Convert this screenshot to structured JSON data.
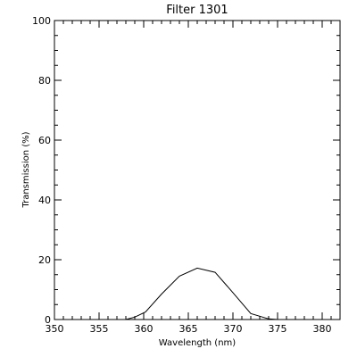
{
  "chart_data": {
    "type": "line",
    "title": "Filter 1301",
    "xlabel": "Wavelength (nm)",
    "ylabel": "Transmission (%)",
    "xlim": [
      350,
      382
    ],
    "ylim": [
      0,
      100
    ],
    "xticks": [
      350,
      355,
      360,
      365,
      370,
      375,
      380
    ],
    "yticks": [
      0,
      20,
      40,
      60,
      80,
      100
    ],
    "xtick_labels": [
      "350",
      "355",
      "360",
      "365",
      "370",
      "375",
      "380"
    ],
    "ytick_labels": [
      "0",
      "20",
      "40",
      "60",
      "80",
      "100"
    ],
    "grid": false,
    "series": [
      {
        "x": [
          357,
          358,
          359,
          360.2,
          362,
          364,
          366,
          368,
          370,
          372,
          374,
          375
        ],
        "y": [
          0,
          0,
          0.8,
          2.5,
          8.5,
          14.5,
          17.2,
          15.8,
          9.0,
          2.0,
          0.2,
          0
        ]
      }
    ]
  }
}
